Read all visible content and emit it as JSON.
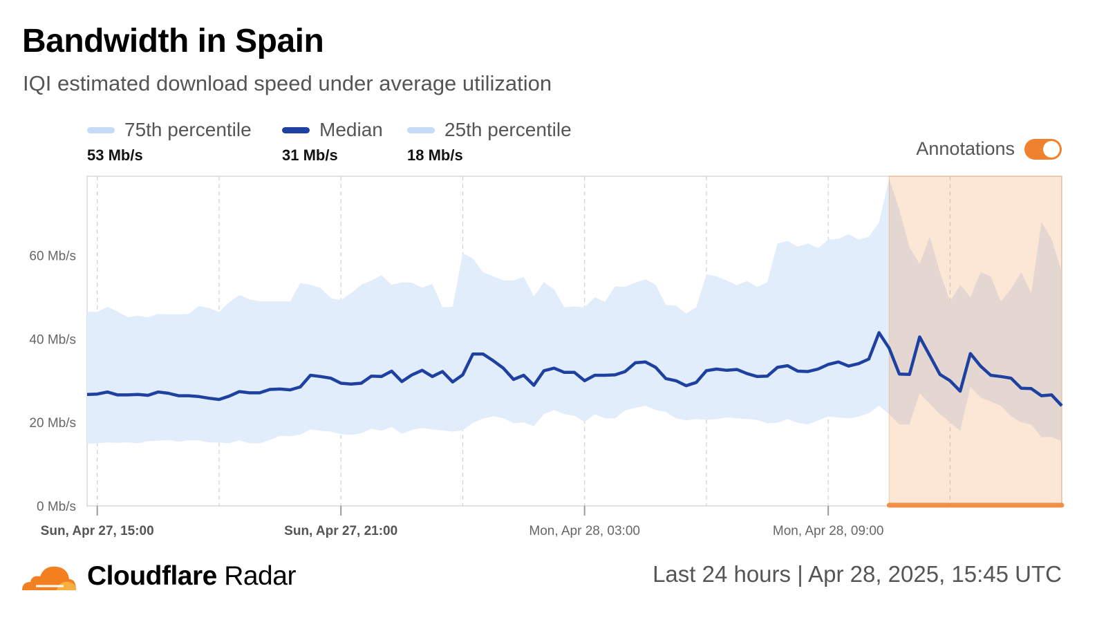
{
  "header": {
    "title": "Bandwidth in Spain",
    "subtitle": "IQI estimated download speed under average utilization"
  },
  "legend": [
    {
      "label": "75th percentile",
      "value": "53 Mb/s",
      "color": "#c6dbf7"
    },
    {
      "label": "Median",
      "value": "31 Mb/s",
      "color": "#1e40a0"
    },
    {
      "label": "25th percentile",
      "value": "18 Mb/s",
      "color": "#c6dbf7"
    }
  ],
  "annotations": {
    "label": "Annotations",
    "enabled": true,
    "color": "#f0812f"
  },
  "footer": {
    "brand_bold": "Cloudflare",
    "brand_regular": "Radar",
    "period": "Last 24 hours | Apr 28, 2025, 15:45 UTC"
  },
  "chart_data": {
    "type": "area",
    "title": "Bandwidth in Spain",
    "subtitle": "IQI estimated download speed under average utilization",
    "x_unit": "15-minute intervals, Sun Apr 27 14:45 UTC to Mon Apr 28 15:45 UTC",
    "xticks": [
      {
        "label": "Sun, Apr 27, 15:00",
        "index": 1,
        "bold": true
      },
      {
        "label": "Sun, Apr 27, 21:00",
        "index": 25,
        "bold": true
      },
      {
        "label": "Mon, Apr 28, 03:00",
        "index": 49,
        "bold": false
      },
      {
        "label": "Mon, Apr 28, 09:00",
        "index": 73,
        "bold": false
      }
    ],
    "yticks": [
      {
        "label": "0 Mb/s",
        "value": 0
      },
      {
        "label": "20 Mb/s",
        "value": 20
      },
      {
        "label": "40 Mb/s",
        "value": 40
      },
      {
        "label": "60 Mb/s",
        "value": 60
      }
    ],
    "ylim": [
      0,
      79
    ],
    "xlim": [
      0,
      96
    ],
    "annotation_region": {
      "start_index": 79,
      "end_index": 96
    },
    "series": [
      {
        "name": "75th percentile",
        "values": [
          46.5,
          46.5,
          47.7,
          46.6,
          45.2,
          45.6,
          45.2,
          46.0,
          45.9,
          45.9,
          46.0,
          47.9,
          47.4,
          46.5,
          48.8,
          50.5,
          49.5,
          49.0,
          49.0,
          49.0,
          49.0,
          53.4,
          53.0,
          52.2,
          49.8,
          49.3,
          51.0,
          53.0,
          54.0,
          55.3,
          53.0,
          53.6,
          53.5,
          52.3,
          53.2,
          47.6,
          47.7,
          60.5,
          59.3,
          56.0,
          55.0,
          54.0,
          54.0,
          54.9,
          50.2,
          53.6,
          51.9,
          47.6,
          47.8,
          47.6,
          50.0,
          48.9,
          52.6,
          52.5,
          53.5,
          54.3,
          53.0,
          48.2,
          48.0,
          46.1,
          47.6,
          55.5,
          55.0,
          54.0,
          52.9,
          53.9,
          52.5,
          53.6,
          62.9,
          63.5,
          62.1,
          62.9,
          61.8,
          63.8,
          64.0,
          65.1,
          63.8,
          64.5,
          67.9,
          78.5,
          71.0,
          62.0,
          58.0,
          64.5,
          56.0,
          49.0,
          53.0,
          50.0,
          56.0,
          55.0,
          49.0,
          52.0,
          56.0,
          51.0,
          68.0,
          64.0,
          56.0
        ],
        "color": "#e2edfb"
      },
      {
        "name": "Median",
        "values": [
          26.7,
          26.8,
          27.3,
          26.6,
          26.6,
          26.7,
          26.5,
          27.3,
          27.0,
          26.4,
          26.4,
          26.2,
          25.8,
          25.5,
          26.3,
          27.4,
          27.1,
          27.1,
          27.9,
          28.0,
          27.8,
          28.5,
          31.3,
          31.0,
          30.6,
          29.4,
          29.2,
          29.4,
          31.1,
          31.0,
          32.3,
          29.8,
          31.4,
          32.5,
          31.0,
          32.2,
          29.7,
          31.4,
          36.4,
          36.4,
          34.8,
          33.0,
          30.3,
          31.3,
          28.9,
          32.4,
          33.0,
          32.0,
          32.0,
          30.0,
          31.3,
          31.3,
          31.4,
          32.2,
          34.3,
          34.5,
          33.2,
          30.5,
          30.0,
          28.8,
          29.6,
          32.4,
          32.8,
          32.5,
          32.7,
          31.7,
          31.0,
          31.1,
          33.2,
          33.6,
          32.3,
          32.2,
          32.8,
          33.9,
          34.5,
          33.5,
          34.1,
          35.2,
          41.5,
          37.8,
          31.6,
          31.5,
          40.5,
          36.0,
          31.5,
          30.0,
          27.5,
          36.5,
          33.5,
          31.3,
          31.0,
          30.6,
          28.2,
          28.1,
          26.4,
          26.6,
          24.0
        ],
        "color": "#1e40a0"
      },
      {
        "name": "25th percentile",
        "values": [
          14.9,
          15.0,
          15.2,
          15.1,
          15.2,
          15.0,
          15.5,
          15.6,
          15.8,
          15.4,
          15.7,
          15.7,
          15.2,
          15.2,
          15.0,
          15.7,
          15.0,
          15.0,
          15.8,
          16.8,
          16.7,
          17.1,
          18.3,
          18.0,
          17.8,
          17.2,
          17.0,
          17.4,
          18.5,
          18.0,
          18.9,
          17.3,
          18.2,
          18.7,
          18.3,
          18.1,
          17.8,
          18.1,
          19.9,
          20.9,
          21.5,
          21.0,
          19.8,
          20.0,
          19.1,
          22.0,
          23.0,
          22.0,
          21.6,
          20.1,
          22.0,
          21.0,
          21.0,
          22.9,
          23.5,
          24.0,
          23.0,
          22.5,
          21.0,
          20.5,
          20.8,
          20.6,
          20.8,
          21.2,
          21.0,
          20.8,
          20.6,
          19.8,
          19.9,
          20.8,
          19.9,
          19.5,
          20.5,
          21.4,
          21.2,
          21.0,
          21.4,
          22.2,
          24.0,
          22.0,
          19.5,
          19.5,
          27.0,
          24.5,
          22.0,
          20.0,
          18.0,
          28.5,
          26.0,
          25.0,
          24.0,
          21.5,
          20.0,
          19.5,
          16.5,
          16.5,
          15.5
        ],
        "color": "#ffffff"
      }
    ]
  }
}
